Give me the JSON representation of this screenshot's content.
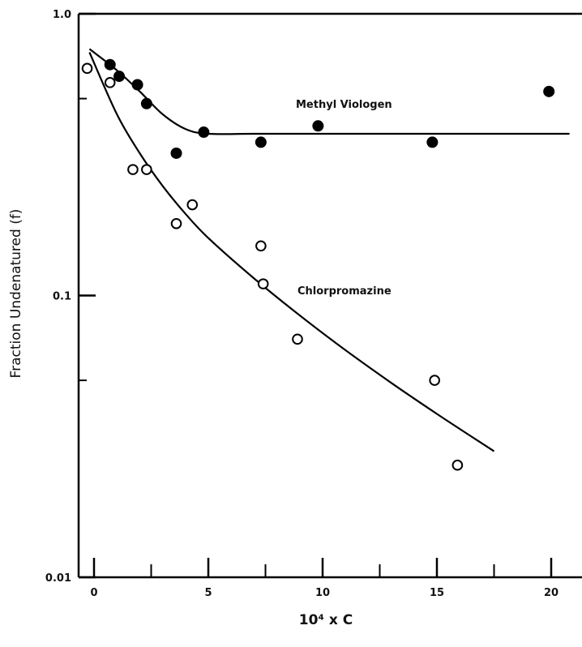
{
  "chart_data": {
    "type": "scatter",
    "xlabel": "10⁴ x C",
    "ylabel": "Fraction Undenatured (f)",
    "x_scale": "linear",
    "y_scale": "log",
    "xlim": [
      -0.5,
      21
    ],
    "ylim": [
      0.01,
      1.0
    ],
    "x_ticks": [
      0,
      5,
      10,
      15,
      20
    ],
    "x_tick_labels": [
      "0",
      "5",
      "10",
      "15",
      "20"
    ],
    "y_tick_labels": [
      "0.01",
      "0.1",
      "1.0"
    ],
    "y_major_ticks": [
      0.01,
      0.1,
      1.0
    ],
    "y_minor_ticks": [
      0.05,
      0.5
    ],
    "grid": false,
    "series": [
      {
        "name": "Methyl Viologen",
        "marker": "filled-circle",
        "points": [
          {
            "x": 0.7,
            "y": 0.66
          },
          {
            "x": 1.1,
            "y": 0.6
          },
          {
            "x": 1.9,
            "y": 0.56
          },
          {
            "x": 2.3,
            "y": 0.48
          },
          {
            "x": 3.6,
            "y": 0.32
          },
          {
            "x": 4.8,
            "y": 0.38
          },
          {
            "x": 7.3,
            "y": 0.35
          },
          {
            "x": 9.8,
            "y": 0.4
          },
          {
            "x": 14.8,
            "y": 0.35
          },
          {
            "x": 19.9,
            "y": 0.53
          }
        ],
        "fit_curve": [
          {
            "x": -0.2,
            "y": 0.75
          },
          {
            "x": 1.0,
            "y": 0.63
          },
          {
            "x": 2.0,
            "y": 0.53
          },
          {
            "x": 3.0,
            "y": 0.44
          },
          {
            "x": 4.0,
            "y": 0.39
          },
          {
            "x": 5.0,
            "y": 0.375
          },
          {
            "x": 7.0,
            "y": 0.375
          },
          {
            "x": 10.0,
            "y": 0.375
          },
          {
            "x": 15.0,
            "y": 0.375
          },
          {
            "x": 20.8,
            "y": 0.375
          }
        ]
      },
      {
        "name": "Chlorpromazine",
        "marker": "open-circle",
        "points": [
          {
            "x": -0.3,
            "y": 0.64
          },
          {
            "x": 0.7,
            "y": 0.57
          },
          {
            "x": 1.7,
            "y": 0.28
          },
          {
            "x": 2.3,
            "y": 0.28
          },
          {
            "x": 3.6,
            "y": 0.18
          },
          {
            "x": 4.3,
            "y": 0.21
          },
          {
            "x": 7.3,
            "y": 0.15
          },
          {
            "x": 7.4,
            "y": 0.11
          },
          {
            "x": 8.9,
            "y": 0.07
          },
          {
            "x": 14.9,
            "y": 0.05
          },
          {
            "x": 15.9,
            "y": 0.025
          }
        ],
        "fit_curve": [
          {
            "x": -0.2,
            "y": 0.73
          },
          {
            "x": 1.0,
            "y": 0.44
          },
          {
            "x": 2.0,
            "y": 0.32
          },
          {
            "x": 3.0,
            "y": 0.245
          },
          {
            "x": 4.0,
            "y": 0.195
          },
          {
            "x": 5.0,
            "y": 0.16
          },
          {
            "x": 7.0,
            "y": 0.115
          },
          {
            "x": 9.0,
            "y": 0.085
          },
          {
            "x": 11.0,
            "y": 0.064
          },
          {
            "x": 13.0,
            "y": 0.049
          },
          {
            "x": 15.0,
            "y": 0.038
          },
          {
            "x": 17.5,
            "y": 0.028
          }
        ]
      }
    ]
  }
}
